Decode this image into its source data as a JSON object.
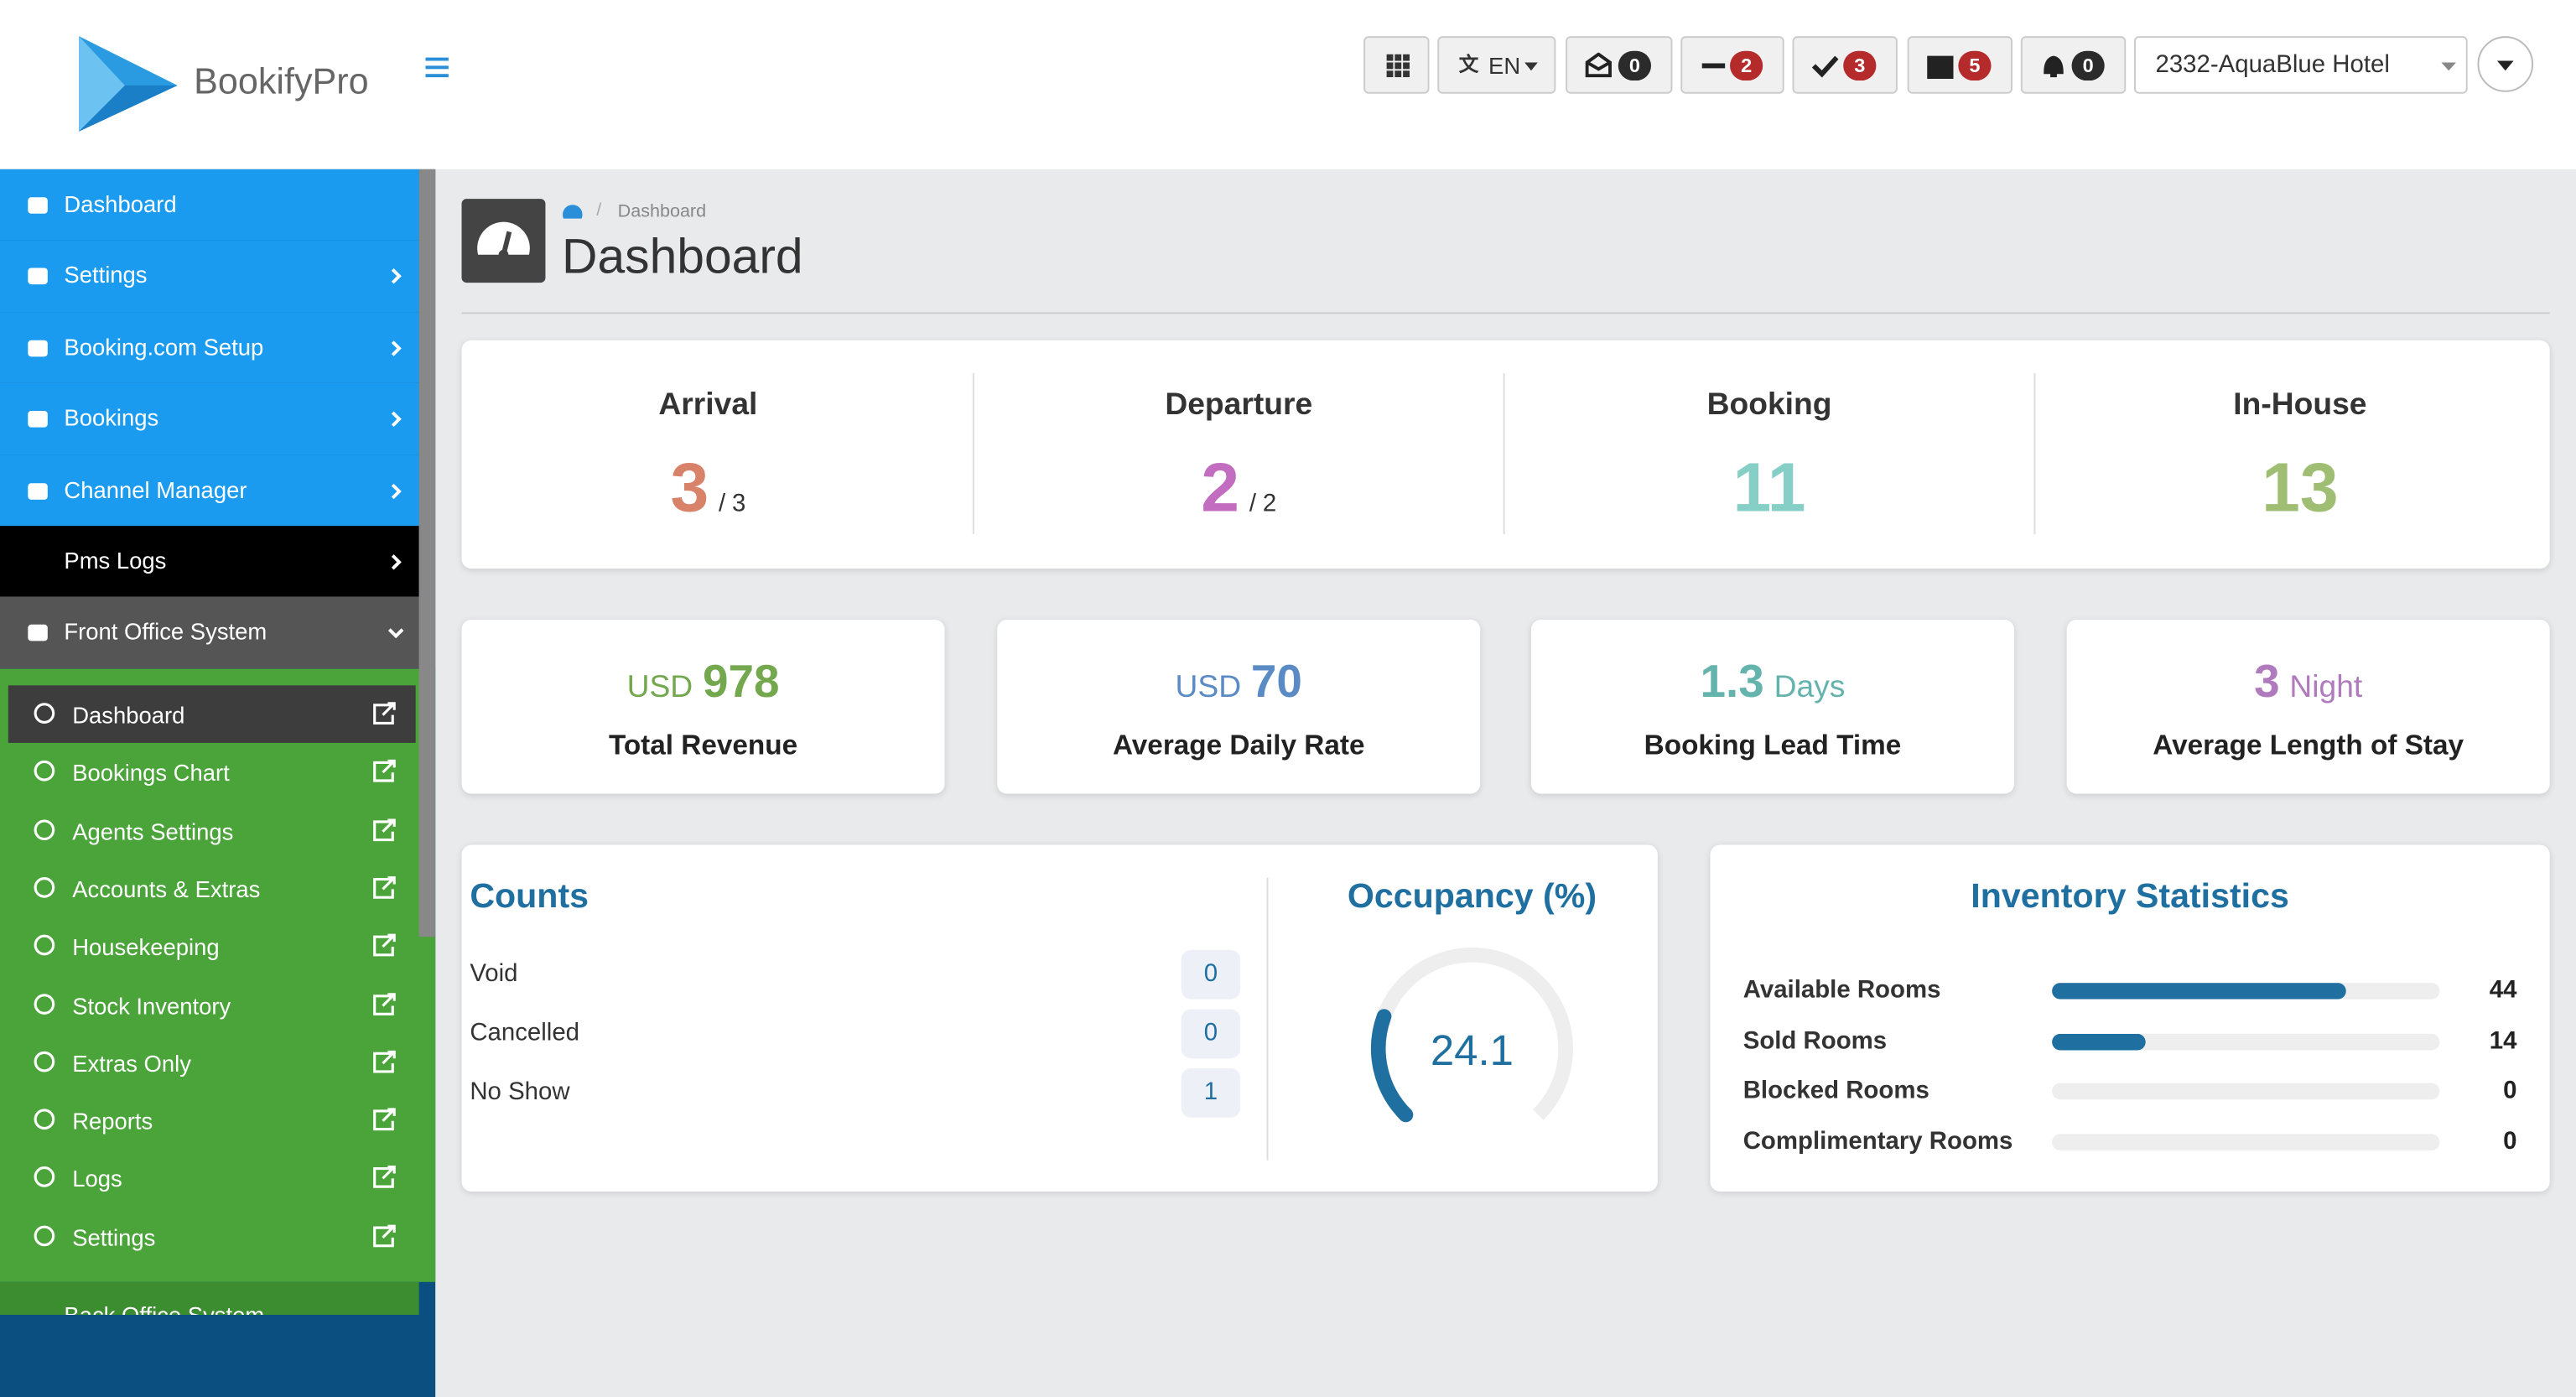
{
  "header": {
    "brand": "BookifyPro",
    "language": "EN",
    "badges": [
      0,
      2,
      3,
      5,
      0
    ],
    "hotel": "2332-AquaBlue Hotel"
  },
  "sidebar": {
    "menu": [
      "Dashboard",
      "Settings",
      "Booking.com Setup",
      "Bookings",
      "Channel Manager",
      "Pms Logs",
      "Front Office System"
    ],
    "submenu": [
      "Dashboard",
      "Bookings Chart",
      "Agents Settings",
      "Accounts & Extras",
      "Housekeeping",
      "Stock Inventory",
      "Extras Only",
      "Reports",
      "Logs",
      "Settings"
    ],
    "next_section": "Back Office System"
  },
  "page": {
    "breadcrumb": "Dashboard",
    "title": "Dashboard"
  },
  "summary": [
    {
      "label": "Arrival",
      "value": 3,
      "separator": "/",
      "total": 3,
      "color": "#d9826a"
    },
    {
      "label": "Departure",
      "value": 2,
      "separator": "/",
      "total": 2,
      "color": "#c26dbf"
    },
    {
      "label": "Booking",
      "value": 11,
      "color": "#86cfc6"
    },
    {
      "label": "In-House",
      "value": 13,
      "color": "#9fbe74"
    }
  ],
  "kpis": [
    {
      "prefix": "USD",
      "value": 978,
      "label": "Total Revenue",
      "color": "#74a84f"
    },
    {
      "prefix": "USD",
      "value": 70,
      "label": "Average Daily Rate",
      "color": "#5b8bc4"
    },
    {
      "value": 1.3,
      "suffix": "Days",
      "label": "Booking Lead Time",
      "color": "#64b3ad"
    },
    {
      "value": 3,
      "suffix": "Night",
      "label": "Average Length of Stay",
      "color": "#b07bbd"
    }
  ],
  "counts": {
    "title": "Counts",
    "rows": [
      {
        "label": "Void",
        "value": 0
      },
      {
        "label": "Cancelled",
        "value": 0
      },
      {
        "label": "No Show",
        "value": 1
      }
    ]
  },
  "occupancy": {
    "title": "Occupancy (%)",
    "value": 24.1
  },
  "inventory": {
    "title": "Inventory Statistics",
    "rows": [
      {
        "label": "Available Rooms",
        "value": 44
      },
      {
        "label": "Sold Rooms",
        "value": 14
      },
      {
        "label": "Blocked Rooms",
        "value": 0
      },
      {
        "label": "Complimentary Rooms",
        "value": 0
      }
    ]
  }
}
